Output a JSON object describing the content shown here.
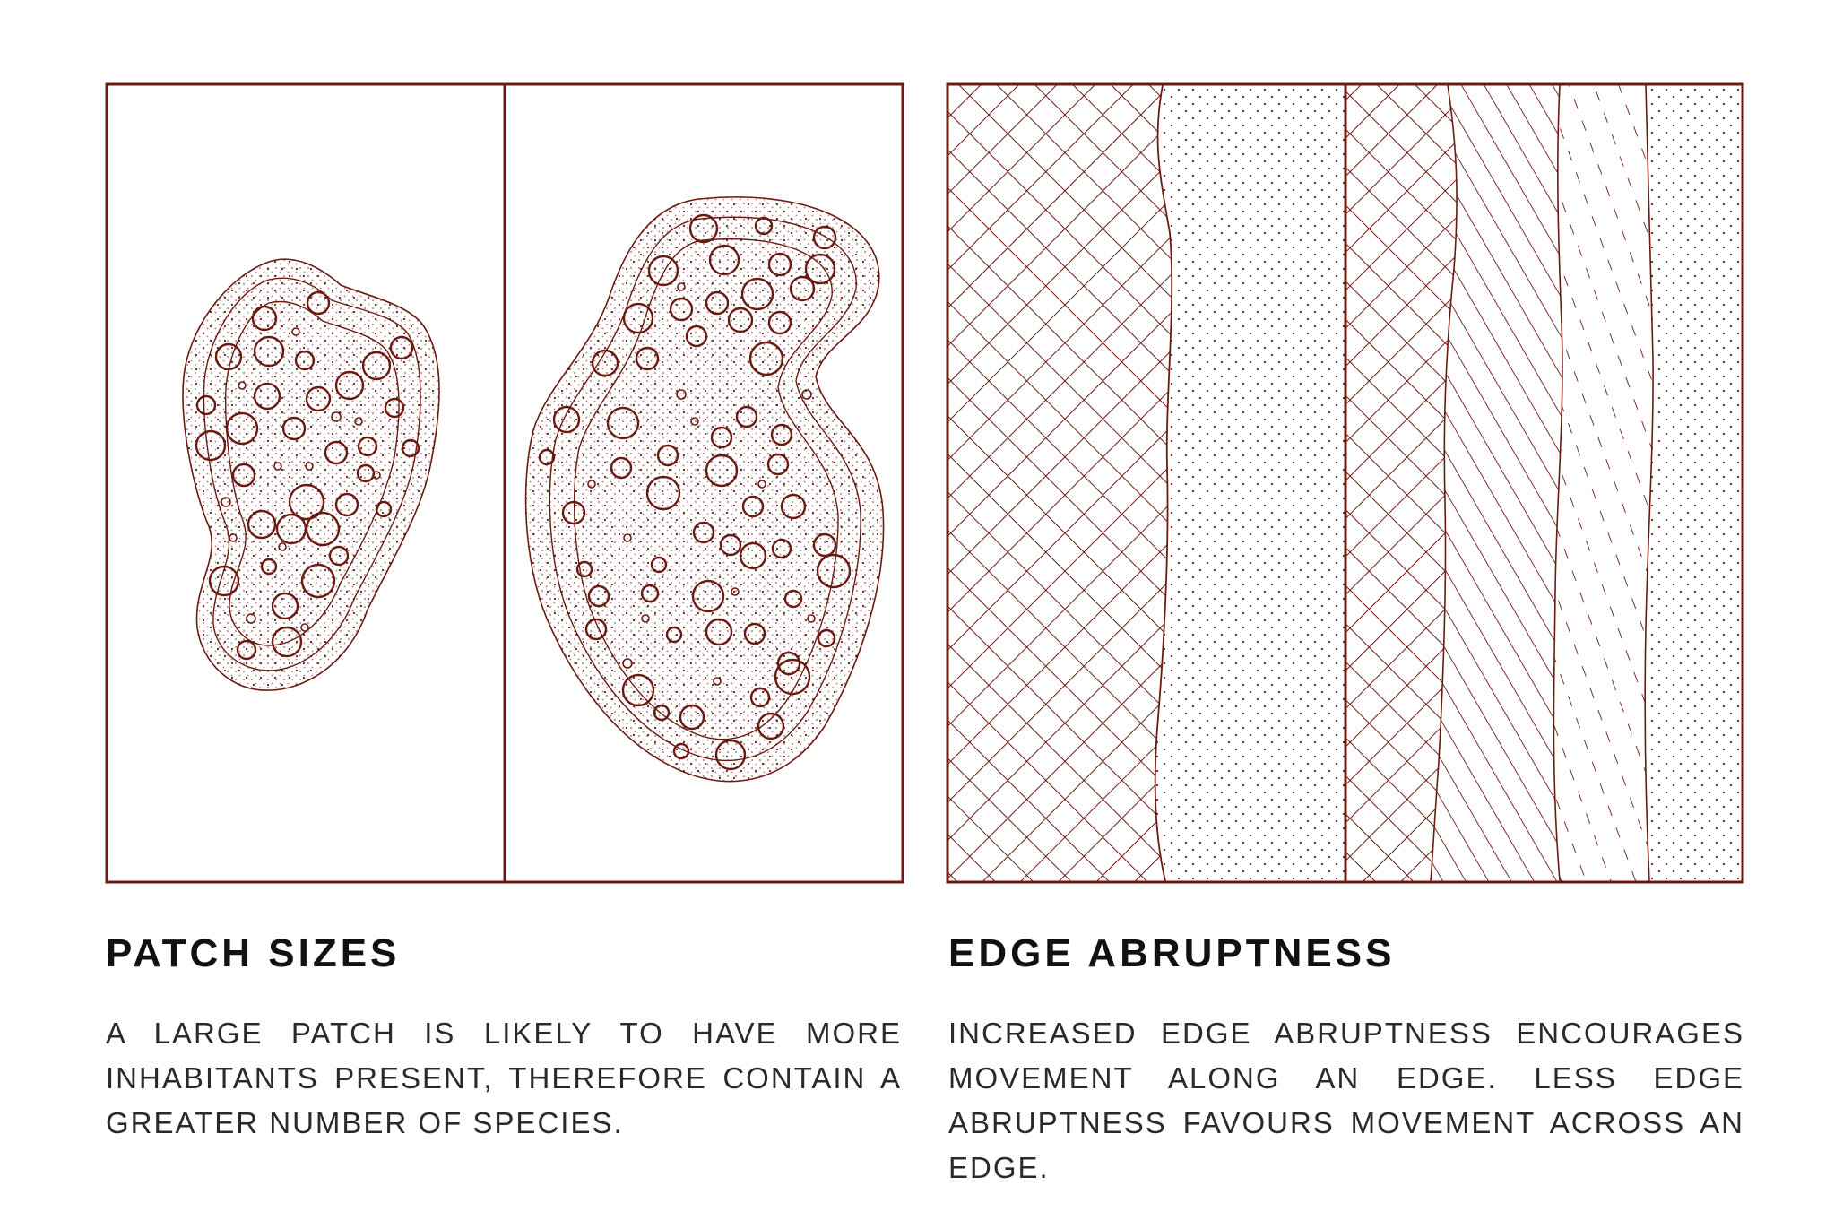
{
  "colors": {
    "ink": "#6b1a12",
    "title": "#111111",
    "text": "#2a2a2a"
  },
  "panels": [
    {
      "title": "PATCH SIZES",
      "description": "A LARGE PATCH IS LIKELY TO HAVE MORE INHABITANTS PRESENT, THEREFORE CONTAIN A GREATER NUMBER OF SPECIES."
    },
    {
      "title": "EDGE ABRUPTNESS",
      "description": "INCREASED EDGE ABRUPTNESS  ENCOURAGES MOVEMENT ALONG AN EDGE. LESS EDGE ABRUPTNESS FAVOURS MOVEMENT ACROSS AN EDGE."
    }
  ]
}
